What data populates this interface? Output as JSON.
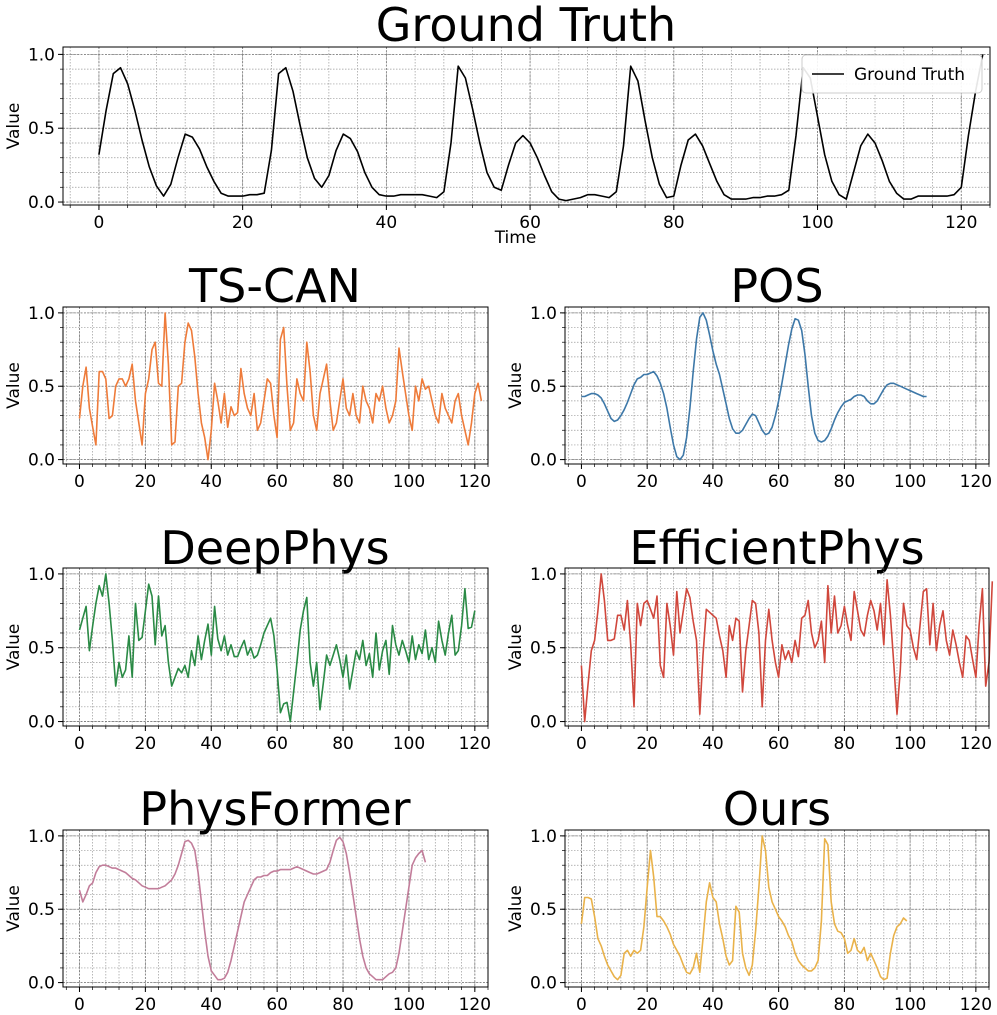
{
  "chart_data": [
    {
      "id": "ground-truth",
      "type": "line",
      "title": "Ground Truth",
      "xlabel": "Time",
      "ylabel": "Value",
      "xlim": [
        -5,
        124
      ],
      "ylim": [
        -0.02,
        1.05
      ],
      "xticks": [
        0,
        20,
        40,
        60,
        80,
        100,
        120
      ],
      "yticks": [
        0.0,
        0.5,
        1.0
      ],
      "ytick_labels": [
        "0.0",
        "0.5",
        "1.0"
      ],
      "grid": true,
      "legend": {
        "entries": [
          "Ground Truth"
        ],
        "position": "top-right"
      },
      "series": [
        {
          "name": "Ground Truth",
          "color": "#000000",
          "values": [
            0.32,
            0.62,
            0.87,
            0.91,
            0.8,
            0.62,
            0.42,
            0.24,
            0.11,
            0.04,
            0.12,
            0.3,
            0.46,
            0.44,
            0.36,
            0.24,
            0.14,
            0.06,
            0.04,
            0.04,
            0.04,
            0.05,
            0.05,
            0.06,
            0.35,
            0.87,
            0.91,
            0.75,
            0.52,
            0.3,
            0.16,
            0.1,
            0.18,
            0.35,
            0.46,
            0.43,
            0.34,
            0.2,
            0.1,
            0.05,
            0.04,
            0.04,
            0.05,
            0.05,
            0.05,
            0.05,
            0.04,
            0.03,
            0.07,
            0.4,
            0.92,
            0.84,
            0.63,
            0.4,
            0.2,
            0.1,
            0.08,
            0.25,
            0.4,
            0.45,
            0.4,
            0.3,
            0.18,
            0.07,
            0.02,
            0.01,
            0.02,
            0.03,
            0.05,
            0.05,
            0.04,
            0.03,
            0.07,
            0.38,
            0.92,
            0.82,
            0.55,
            0.3,
            0.12,
            0.03,
            0.04,
            0.25,
            0.42,
            0.46,
            0.38,
            0.26,
            0.14,
            0.05,
            0.02,
            0.02,
            0.02,
            0.03,
            0.03,
            0.04,
            0.04,
            0.05,
            0.08,
            0.45,
            0.91,
            0.84,
            0.58,
            0.32,
            0.14,
            0.05,
            0.02,
            0.2,
            0.38,
            0.46,
            0.4,
            0.28,
            0.14,
            0.06,
            0.02,
            0.02,
            0.04,
            0.04,
            0.04,
            0.04,
            0.04,
            0.05,
            0.1,
            0.45,
            0.75,
            1.0
          ]
        }
      ]
    },
    {
      "id": "ts-can",
      "type": "line",
      "title": "TS-CAN",
      "xlabel": "",
      "ylabel": "Value",
      "xlim": [
        -5,
        124
      ],
      "ylim": [
        -0.03,
        1.04
      ],
      "xticks": [
        0,
        20,
        40,
        60,
        80,
        100,
        120
      ],
      "yticks": [
        0.0,
        0.5,
        1.0
      ],
      "ytick_labels": [
        "0.0",
        "0.5",
        "1.0"
      ],
      "grid": true,
      "series": [
        {
          "name": "TS-CAN",
          "color": "#ee7b3a",
          "values": [
            0.28,
            0.5,
            0.63,
            0.35,
            0.22,
            0.1,
            0.6,
            0.6,
            0.55,
            0.28,
            0.3,
            0.5,
            0.55,
            0.55,
            0.5,
            0.55,
            0.65,
            0.4,
            0.25,
            0.1,
            0.45,
            0.55,
            0.75,
            0.8,
            0.52,
            0.5,
            1.0,
            0.65,
            0.1,
            0.12,
            0.5,
            0.52,
            0.8,
            0.93,
            0.88,
            0.7,
            0.45,
            0.25,
            0.15,
            0.0,
            0.2,
            0.52,
            0.4,
            0.25,
            0.45,
            0.22,
            0.36,
            0.3,
            0.32,
            0.62,
            0.45,
            0.35,
            0.3,
            0.45,
            0.2,
            0.25,
            0.4,
            0.55,
            0.52,
            0.3,
            0.15,
            0.82,
            0.9,
            0.5,
            0.2,
            0.25,
            0.55,
            0.45,
            0.4,
            0.8,
            0.6,
            0.3,
            0.2,
            0.45,
            0.55,
            0.65,
            0.4,
            0.2,
            0.25,
            0.4,
            0.55,
            0.35,
            0.3,
            0.45,
            0.3,
            0.25,
            0.5,
            0.4,
            0.35,
            0.25,
            0.45,
            0.4,
            0.5,
            0.35,
            0.25,
            0.3,
            0.4,
            0.76,
            0.6,
            0.45,
            0.3,
            0.2,
            0.5,
            0.4,
            0.55,
            0.48,
            0.5,
            0.4,
            0.3,
            0.25,
            0.45,
            0.35,
            0.3,
            0.25,
            0.4,
            0.45,
            0.3,
            0.2,
            0.1,
            0.25,
            0.45,
            0.52,
            0.4
          ]
        }
      ]
    },
    {
      "id": "pos",
      "type": "line",
      "title": "POS",
      "xlabel": "",
      "ylabel": "Value",
      "xlim": [
        -5,
        124
      ],
      "ylim": [
        -0.03,
        1.04
      ],
      "xticks": [
        0,
        20,
        40,
        60,
        80,
        100,
        120
      ],
      "yticks": [
        0.0,
        0.5,
        1.0
      ],
      "ytick_labels": [
        "0.0",
        "0.5",
        "1.0"
      ],
      "grid": true,
      "series": [
        {
          "name": "POS",
          "color": "#3d78a8",
          "values": [
            0.43,
            0.43,
            0.44,
            0.45,
            0.45,
            0.44,
            0.42,
            0.38,
            0.33,
            0.28,
            0.26,
            0.27,
            0.3,
            0.34,
            0.39,
            0.45,
            0.51,
            0.55,
            0.56,
            0.58,
            0.58,
            0.59,
            0.6,
            0.57,
            0.52,
            0.45,
            0.35,
            0.22,
            0.1,
            0.02,
            0.0,
            0.03,
            0.15,
            0.35,
            0.6,
            0.82,
            0.97,
            1.0,
            0.95,
            0.85,
            0.74,
            0.65,
            0.58,
            0.48,
            0.38,
            0.28,
            0.21,
            0.18,
            0.18,
            0.2,
            0.24,
            0.28,
            0.31,
            0.3,
            0.25,
            0.2,
            0.17,
            0.18,
            0.22,
            0.3,
            0.4,
            0.52,
            0.65,
            0.78,
            0.89,
            0.96,
            0.95,
            0.88,
            0.72,
            0.5,
            0.3,
            0.18,
            0.13,
            0.12,
            0.13,
            0.16,
            0.21,
            0.27,
            0.32,
            0.36,
            0.39,
            0.4,
            0.41,
            0.43,
            0.44,
            0.44,
            0.43,
            0.4,
            0.38,
            0.38,
            0.4,
            0.44,
            0.48,
            0.51,
            0.52,
            0.52,
            0.51,
            0.5,
            0.49,
            0.48,
            0.47,
            0.46,
            0.45,
            0.44,
            0.43,
            0.43
          ]
        }
      ]
    },
    {
      "id": "deepphys",
      "type": "line",
      "title": "DeepPhys",
      "xlabel": "",
      "ylabel": "Value",
      "xlim": [
        -5,
        124
      ],
      "ylim": [
        -0.03,
        1.04
      ],
      "xticks": [
        0,
        20,
        40,
        60,
        80,
        100,
        120
      ],
      "yticks": [
        0.0,
        0.5,
        1.0
      ],
      "ytick_labels": [
        "0.0",
        "0.5",
        "1.0"
      ],
      "grid": true,
      "series": [
        {
          "name": "DeepPhys",
          "color": "#2a8a45",
          "values": [
            0.62,
            0.7,
            0.78,
            0.48,
            0.65,
            0.8,
            0.92,
            0.85,
            1.0,
            0.8,
            0.55,
            0.24,
            0.4,
            0.3,
            0.35,
            0.58,
            0.3,
            0.8,
            0.55,
            0.57,
            0.75,
            0.93,
            0.85,
            0.52,
            0.85,
            0.58,
            0.65,
            0.4,
            0.24,
            0.3,
            0.36,
            0.33,
            0.38,
            0.3,
            0.48,
            0.38,
            0.58,
            0.42,
            0.55,
            0.66,
            0.45,
            0.78,
            0.56,
            0.48,
            0.58,
            0.45,
            0.52,
            0.44,
            0.44,
            0.5,
            0.55,
            0.45,
            0.5,
            0.43,
            0.45,
            0.52,
            0.6,
            0.65,
            0.7,
            0.58,
            0.35,
            0.06,
            0.12,
            0.13,
            0.0,
            0.2,
            0.4,
            0.62,
            0.75,
            0.84,
            0.4,
            0.24,
            0.4,
            0.08,
            0.26,
            0.45,
            0.38,
            0.45,
            0.52,
            0.42,
            0.3,
            0.45,
            0.22,
            0.35,
            0.48,
            0.42,
            0.55,
            0.38,
            0.46,
            0.3,
            0.6,
            0.35,
            0.48,
            0.55,
            0.32,
            0.65,
            0.52,
            0.45,
            0.55,
            0.48,
            0.4,
            0.58,
            0.42,
            0.52,
            0.46,
            0.62,
            0.42,
            0.5,
            0.4,
            0.68,
            0.55,
            0.45,
            0.6,
            0.72,
            0.45,
            0.48,
            0.65,
            0.9,
            0.63,
            0.64,
            0.75
          ]
        }
      ]
    },
    {
      "id": "efficientphys",
      "type": "line",
      "title": "EfficientPhys",
      "xlabel": "",
      "ylabel": "Value",
      "xlim": [
        -5,
        124
      ],
      "ylim": [
        -0.03,
        1.04
      ],
      "xticks": [
        0,
        20,
        40,
        60,
        80,
        100,
        120
      ],
      "yticks": [
        0.0,
        0.5,
        1.0
      ],
      "ytick_labels": [
        "0.0",
        "0.5",
        "1.0"
      ],
      "grid": true,
      "series": [
        {
          "name": "EfficientPhys",
          "color": "#d0473c",
          "values": [
            0.38,
            0.0,
            0.25,
            0.48,
            0.55,
            0.75,
            1.0,
            0.82,
            0.55,
            0.55,
            0.56,
            0.72,
            0.72,
            0.62,
            0.82,
            0.52,
            0.1,
            0.8,
            0.65,
            0.8,
            0.82,
            0.76,
            0.7,
            0.85,
            0.38,
            0.3,
            0.8,
            0.65,
            0.45,
            0.88,
            0.6,
            0.75,
            0.9,
            0.84,
            0.68,
            0.55,
            0.05,
            0.45,
            0.76,
            0.74,
            0.72,
            0.7,
            0.58,
            0.48,
            0.3,
            0.65,
            0.55,
            0.7,
            0.68,
            0.2,
            0.48,
            0.65,
            0.82,
            0.8,
            0.6,
            0.1,
            0.55,
            0.76,
            0.55,
            0.4,
            0.3,
            0.52,
            0.42,
            0.48,
            0.4,
            0.55,
            0.44,
            0.7,
            0.72,
            0.82,
            0.6,
            0.5,
            0.55,
            0.68,
            0.4,
            0.92,
            0.6,
            0.85,
            0.6,
            0.65,
            0.78,
            0.65,
            0.55,
            0.88,
            0.75,
            0.62,
            0.58,
            0.72,
            0.82,
            0.75,
            0.62,
            0.8,
            0.52,
            0.96,
            0.72,
            0.4,
            0.05,
            0.35,
            0.8,
            0.65,
            0.62,
            0.5,
            0.42,
            0.65,
            0.88,
            0.9,
            0.52,
            0.8,
            0.48,
            0.65,
            0.75,
            0.55,
            0.45,
            0.62,
            0.52,
            0.4,
            0.3,
            0.58,
            0.55,
            0.42,
            0.3,
            0.65,
            0.9,
            0.24,
            0.4,
            0.95
          ]
        }
      ]
    },
    {
      "id": "physformer",
      "type": "line",
      "title": "PhysFormer",
      "xlabel": "",
      "ylabel": "Value",
      "xlim": [
        -5,
        124
      ],
      "ylim": [
        -0.03,
        1.04
      ],
      "xticks": [
        0,
        20,
        40,
        60,
        80,
        100,
        120
      ],
      "yticks": [
        0.0,
        0.5,
        1.0
      ],
      "ytick_labels": [
        "0.0",
        "0.5",
        "1.0"
      ],
      "grid": true,
      "series": [
        {
          "name": "PhysFormer",
          "color": "#c27d9a",
          "values": [
            0.63,
            0.55,
            0.6,
            0.66,
            0.68,
            0.75,
            0.79,
            0.8,
            0.8,
            0.79,
            0.78,
            0.78,
            0.77,
            0.76,
            0.75,
            0.73,
            0.71,
            0.7,
            0.68,
            0.66,
            0.65,
            0.64,
            0.64,
            0.64,
            0.64,
            0.65,
            0.66,
            0.68,
            0.7,
            0.74,
            0.8,
            0.88,
            0.96,
            0.97,
            0.95,
            0.9,
            0.75,
            0.55,
            0.35,
            0.18,
            0.08,
            0.05,
            0.02,
            0.02,
            0.03,
            0.07,
            0.15,
            0.25,
            0.35,
            0.45,
            0.55,
            0.6,
            0.65,
            0.7,
            0.72,
            0.72,
            0.73,
            0.73,
            0.75,
            0.76,
            0.76,
            0.77,
            0.77,
            0.77,
            0.77,
            0.78,
            0.79,
            0.78,
            0.77,
            0.76,
            0.75,
            0.74,
            0.74,
            0.75,
            0.76,
            0.77,
            0.82,
            0.9,
            0.97,
            0.99,
            0.96,
            0.88,
            0.75,
            0.6,
            0.45,
            0.3,
            0.18,
            0.1,
            0.06,
            0.04,
            0.02,
            0.02,
            0.02,
            0.04,
            0.06,
            0.07,
            0.1,
            0.2,
            0.35,
            0.5,
            0.65,
            0.8,
            0.85,
            0.88,
            0.9,
            0.82
          ]
        }
      ]
    },
    {
      "id": "ours",
      "type": "line",
      "title": "Ours",
      "xlabel": "",
      "ylabel": "Value",
      "xlim": [
        -5,
        124
      ],
      "ylim": [
        -0.03,
        1.04
      ],
      "xticks": [
        0,
        20,
        40,
        60,
        80,
        100,
        120
      ],
      "yticks": [
        0.0,
        0.5,
        1.0
      ],
      "ytick_labels": [
        "0.0",
        "0.5",
        "1.0"
      ],
      "grid": true,
      "series": [
        {
          "name": "Ours",
          "color": "#e9b24a",
          "values": [
            0.4,
            0.58,
            0.58,
            0.57,
            0.45,
            0.3,
            0.25,
            0.18,
            0.12,
            0.08,
            0.04,
            0.02,
            0.05,
            0.2,
            0.22,
            0.18,
            0.22,
            0.2,
            0.22,
            0.38,
            0.65,
            0.9,
            0.72,
            0.45,
            0.45,
            0.42,
            0.38,
            0.33,
            0.26,
            0.22,
            0.18,
            0.12,
            0.07,
            0.06,
            0.1,
            0.2,
            0.07,
            0.3,
            0.55,
            0.68,
            0.58,
            0.55,
            0.4,
            0.3,
            0.18,
            0.12,
            0.15,
            0.52,
            0.48,
            0.2,
            0.1,
            0.05,
            0.12,
            0.35,
            0.65,
            1.0,
            0.9,
            0.65,
            0.55,
            0.5,
            0.45,
            0.42,
            0.38,
            0.32,
            0.28,
            0.2,
            0.15,
            0.12,
            0.1,
            0.08,
            0.08,
            0.1,
            0.15,
            0.42,
            0.98,
            0.94,
            0.55,
            0.4,
            0.35,
            0.34,
            0.3,
            0.2,
            0.22,
            0.3,
            0.22,
            0.2,
            0.24,
            0.15,
            0.2,
            0.15,
            0.1,
            0.04,
            0.02,
            0.03,
            0.2,
            0.32,
            0.38,
            0.4,
            0.44,
            0.42
          ]
        }
      ]
    }
  ]
}
